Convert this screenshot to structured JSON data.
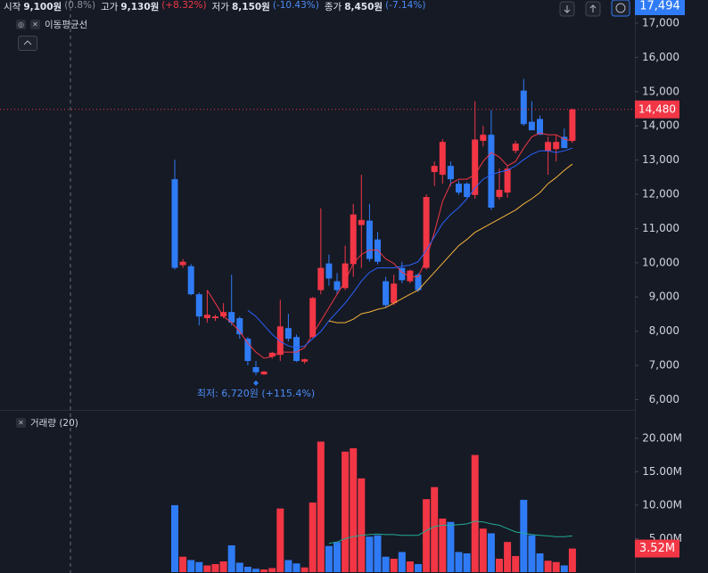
{
  "header": {
    "items": [
      {
        "label": "시작",
        "value": "9,100원",
        "change": "(0.8%)"
      },
      {
        "label": "고가",
        "value": "9,130원",
        "change": "(+8.32%)"
      },
      {
        "label": "저가",
        "value": "8,150원",
        "change": "(-10.43%)"
      },
      {
        "label": "종가",
        "value": "8,450원",
        "change": "(-7.14%)"
      }
    ]
  },
  "chart_data": [
    {
      "type": "candlestick",
      "legend": "이동평균선",
      "up_color": "#f23645",
      "down_color": "#2f7bf5",
      "open": [
        12440,
        9930,
        9900,
        9080,
        8380,
        8380,
        8430,
        8560,
        8380,
        7780,
        6950,
        6740,
        7260,
        7310,
        8090,
        7830,
        7110,
        7830,
        9200,
        9980,
        9460,
        9260,
        9960,
        11100,
        11230,
        10680,
        9460,
        8820,
        9850,
        9460,
        9650,
        9850,
        12650,
        12570,
        12830,
        12310,
        12310,
        11980,
        13560,
        13740,
        11920,
        12050,
        13270,
        15030,
        14120,
        14200,
        13270,
        13320,
        13680,
        13560
      ],
      "high": [
        13010,
        10110,
        9960,
        9130,
        9200,
        8480,
        8820,
        9650,
        8430,
        7830,
        7130,
        6840,
        7400,
        8920,
        8510,
        7900,
        7200,
        9000,
        11590,
        10240,
        9700,
        10500,
        11720,
        12570,
        11720,
        10900,
        9590,
        9650,
        10030,
        9800,
        9700,
        12000,
        12960,
        13610,
        12960,
        12400,
        12350,
        14720,
        14000,
        14460,
        12750,
        12830,
        13560,
        15370,
        14720,
        14300,
        13680,
        13740,
        13920,
        14510
      ],
      "low": [
        9800,
        9850,
        9050,
        8170,
        8250,
        8300,
        8380,
        8170,
        7780,
        7000,
        6720,
        6720,
        7200,
        7130,
        7700,
        7100,
        7050,
        7800,
        9080,
        9330,
        9100,
        9200,
        9590,
        9850,
        10030,
        9950,
        8690,
        8760,
        9400,
        9400,
        9150,
        9800,
        12240,
        12310,
        12240,
        11980,
        11900,
        11870,
        13400,
        11540,
        11850,
        11900,
        13200,
        14000,
        13870,
        13740,
        12570,
        12960,
        13350,
        13500
      ],
      "close": [
        9850,
        10030,
        9080,
        8430,
        8480,
        8430,
        8560,
        8250,
        7910,
        7130,
        6800,
        6820,
        7370,
        8140,
        7780,
        7130,
        7180,
        8970,
        9850,
        9540,
        9200,
        9980,
        11410,
        11250,
        10110,
        10030,
        8760,
        9390,
        9490,
        9770,
        9200,
        11920,
        12830,
        13530,
        12440,
        12050,
        11920,
        13600,
        13740,
        11610,
        12130,
        12750,
        13480,
        14050,
        13870,
        13740,
        13530,
        13530,
        13350,
        14480
      ],
      "series": [
        {
          "color": "#f23645",
          "values": [
            null,
            null,
            null,
            null,
            9200,
            8820,
            8430,
            8250,
            7990,
            7650,
            7390,
            7210,
            7260,
            7390,
            7390,
            7390,
            7520,
            7910,
            8300,
            8690,
            9080,
            9460,
            9980,
            10240,
            10370,
            10370,
            10110,
            9980,
            9720,
            9590,
            9590,
            10110,
            10890,
            11790,
            12310,
            12440,
            12440,
            12570,
            12960,
            13220,
            13090,
            12830,
            12960,
            13350,
            13680,
            13790,
            13740,
            13740,
            13610,
            13560
          ]
        },
        {
          "color": "#2962ff",
          "values": [
            null,
            null,
            null,
            null,
            null,
            null,
            null,
            null,
            null,
            8610,
            8430,
            8170,
            7910,
            7700,
            7570,
            7520,
            7570,
            7780,
            7990,
            8300,
            8560,
            8820,
            9130,
            9460,
            9720,
            9850,
            9850,
            9850,
            9900,
            9930,
            10030,
            10370,
            10760,
            11150,
            11410,
            11610,
            11870,
            12180,
            12440,
            12570,
            12650,
            12700,
            12830,
            13010,
            13170,
            13270,
            13270,
            13220,
            13270,
            13350
          ]
        },
        {
          "color": "#f5b43c",
          "values": [
            null,
            null,
            null,
            null,
            null,
            null,
            null,
            null,
            null,
            null,
            null,
            null,
            null,
            null,
            null,
            null,
            null,
            null,
            null,
            8300,
            8250,
            8250,
            8350,
            8510,
            8560,
            8640,
            8690,
            8820,
            8950,
            9080,
            9200,
            9460,
            9720,
            9980,
            10240,
            10500,
            10680,
            10890,
            11020,
            11150,
            11280,
            11410,
            11540,
            11720,
            11870,
            12050,
            12310,
            12490,
            12700,
            12880
          ]
        }
      ],
      "ylim": [
        5700,
        17494
      ],
      "yticks": [
        {
          "value": 6000,
          "label": "6,000"
        },
        {
          "value": 7000,
          "label": "7,000"
        },
        {
          "value": 8000,
          "label": "8,000"
        },
        {
          "value": 9000,
          "label": "9,000"
        },
        {
          "value": 10000,
          "label": "10,000"
        },
        {
          "value": 11000,
          "label": "11,000"
        },
        {
          "value": 12000,
          "label": "12,000"
        },
        {
          "value": 13000,
          "label": "13,000"
        },
        {
          "value": 14000,
          "label": "14,000"
        },
        {
          "value": 15000,
          "label": "15,000"
        },
        {
          "value": 16000,
          "label": "16,000"
        },
        {
          "value": 17000,
          "label": "17,000"
        }
      ],
      "current_price": {
        "value": 14480,
        "label": "14,480"
      },
      "top_label": {
        "value": 17494,
        "label": "17,494"
      },
      "annotation": {
        "value": 6720,
        "label": "최저: 6,720원 (+115.4%)"
      }
    },
    {
      "type": "bar",
      "legend": "거래량 (20)",
      "values": [
        10000000,
        2300000,
        1800000,
        1500000,
        1000000,
        1200000,
        1600000,
        4000000,
        1400000,
        800000,
        500000,
        400000,
        600000,
        9500000,
        1800000,
        1300000,
        700000,
        10400000,
        19500000,
        3900000,
        4500000,
        18000000,
        18500000,
        14000000,
        5300000,
        5500000,
        2300000,
        2000000,
        3000000,
        1600000,
        1200000,
        10900000,
        12700000,
        8000000,
        7500000,
        3000000,
        2800000,
        17500000,
        6500000,
        5800000,
        2000000,
        4500000,
        2400000,
        10800000,
        5500000,
        2800000,
        1700000,
        1500000,
        1000000,
        3520000
      ],
      "series": [
        {
          "color": "#22ab94",
          "values": [
            null,
            null,
            null,
            null,
            null,
            null,
            null,
            null,
            null,
            null,
            null,
            null,
            null,
            null,
            null,
            null,
            null,
            null,
            null,
            4300000,
            4500000,
            5000000,
            5300000,
            5500000,
            5600000,
            5700000,
            5600000,
            5600000,
            5500000,
            5500000,
            5500000,
            6200000,
            6800000,
            7000000,
            7000000,
            7100000,
            7200000,
            7600000,
            7500000,
            7200000,
            7000000,
            6500000,
            6000000,
            5800000,
            5600000,
            5500000,
            5400000,
            5300000,
            5300000,
            5400000
          ]
        }
      ],
      "ylim": [
        0,
        22900000
      ],
      "yticks": [
        {
          "value": 5000000,
          "label": "5.00M"
        },
        {
          "value": 10000000,
          "label": "10.00M"
        },
        {
          "value": 15000000,
          "label": "15.00M"
        },
        {
          "value": 20000000,
          "label": "20.00M"
        }
      ],
      "last_value": {
        "value": 3520000,
        "label": "3.52M"
      }
    }
  ]
}
